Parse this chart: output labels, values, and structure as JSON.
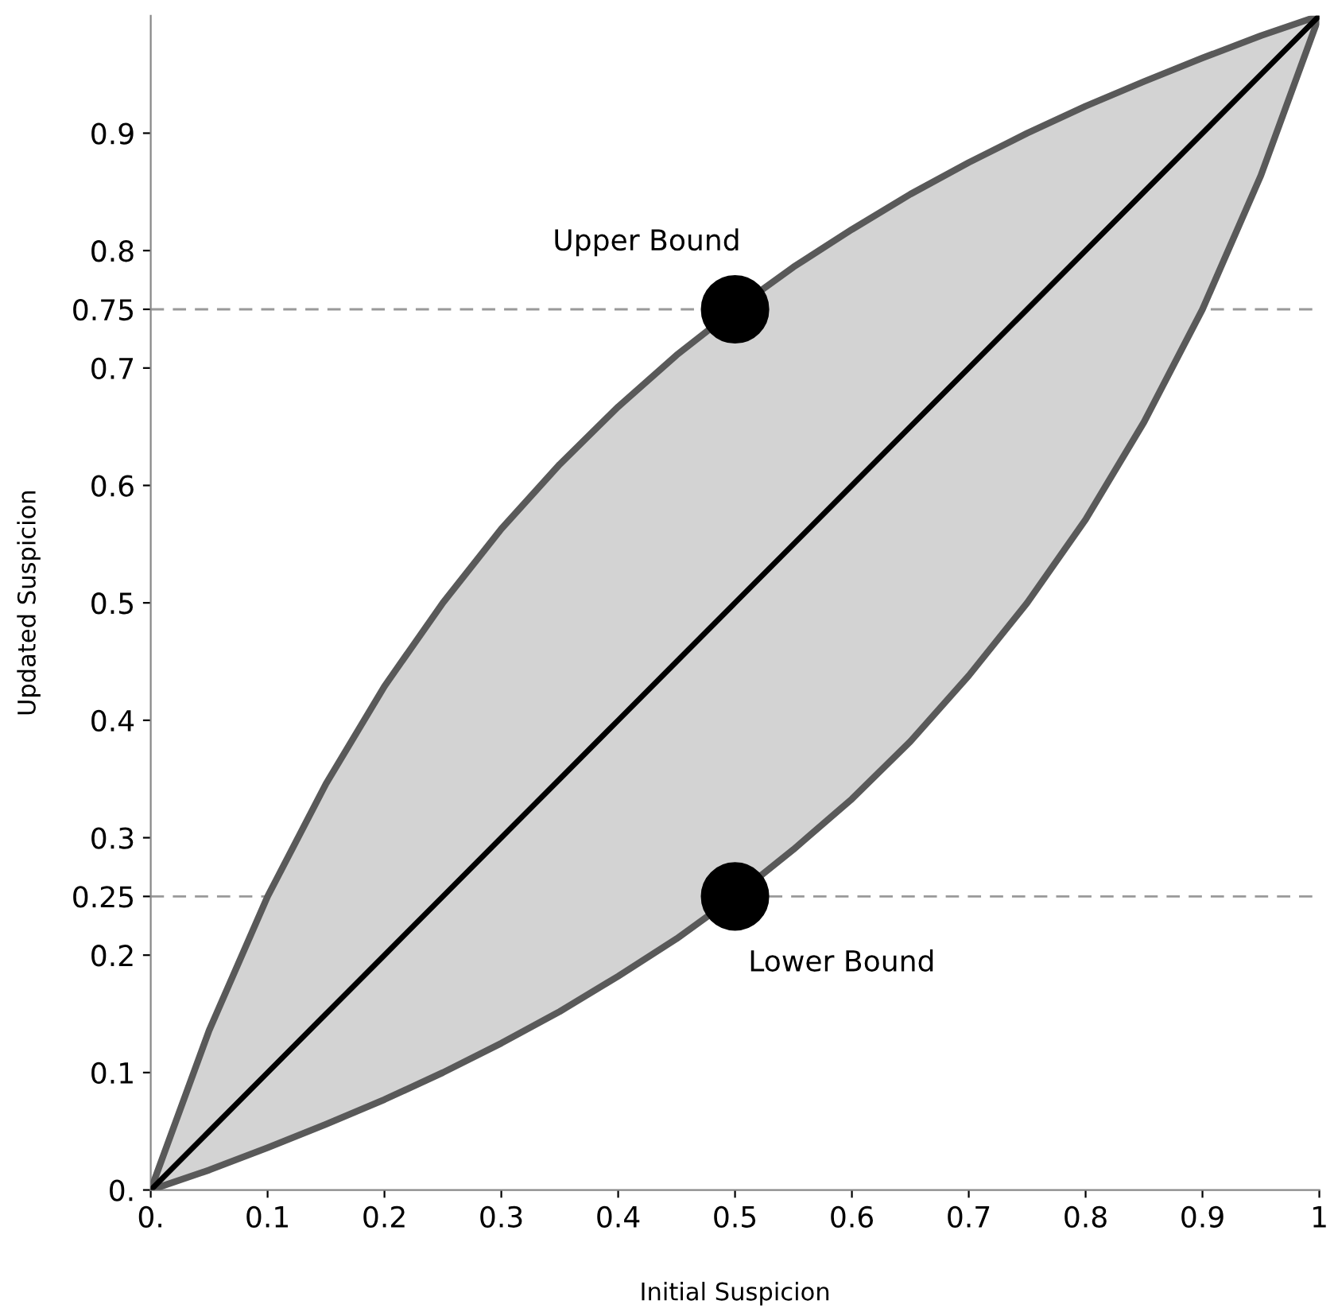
{
  "chart_data": {
    "type": "line",
    "xlabel": "Initial Suspicion",
    "ylabel": "Updated Suspicion",
    "xlim": [
      0,
      1
    ],
    "ylim": [
      0,
      1
    ],
    "xticks": [
      {
        "value": 0,
        "label": "0."
      },
      0.1,
      0.2,
      0.3,
      0.4,
      0.5,
      0.6,
      0.7,
      0.8,
      0.9,
      1
    ],
    "yticks": [
      {
        "value": 0,
        "label": "0."
      },
      0.1,
      0.2,
      0.25,
      0.3,
      0.4,
      0.5,
      0.6,
      0.7,
      0.75,
      0.8,
      0.9
    ],
    "grid": false,
    "series": [
      {
        "color": "#000000",
        "x": [
          0,
          0.05,
          0.1,
          0.15,
          0.2,
          0.25,
          0.3,
          0.35,
          0.4,
          0.45,
          0.5,
          0.55,
          0.6,
          0.65,
          0.7,
          0.75,
          0.8,
          0.85,
          0.9,
          0.95,
          1
        ],
        "values": [
          0,
          0.05,
          0.1,
          0.15,
          0.2,
          0.25,
          0.3,
          0.35,
          0.4,
          0.45,
          0.5,
          0.55,
          0.6,
          0.65,
          0.7,
          0.75,
          0.8,
          0.85,
          0.9,
          0.95,
          1
        ],
        "lower": [
          0,
          0.017,
          0.036,
          0.056,
          0.077,
          0.1,
          0.125,
          0.152,
          0.182,
          0.214,
          0.25,
          0.29,
          0.333,
          0.382,
          0.438,
          0.5,
          0.571,
          0.654,
          0.75,
          0.864,
          1
        ],
        "upper": [
          0,
          0.136,
          0.25,
          0.346,
          0.429,
          0.5,
          0.563,
          0.618,
          0.667,
          0.711,
          0.75,
          0.786,
          0.818,
          0.848,
          0.875,
          0.9,
          0.923,
          0.944,
          0.964,
          0.983,
          1
        ]
      },
      {
        "type": "scatter",
        "color": "#000000",
        "marker": "circle",
        "x": [
          0.5,
          0.5
        ],
        "values": [
          0.75,
          0.25
        ]
      }
    ],
    "ref_lines": [
      {
        "axis": "y",
        "value": 0.75,
        "color": "#999999",
        "line_style": "dashed"
      },
      {
        "axis": "y",
        "value": 0.25,
        "color": "#999999",
        "line_style": "dashed"
      }
    ],
    "annotations": [
      {
        "text": "Upper Bound",
        "x": 0.5,
        "y": 0.75
      },
      {
        "text": "Lower Bound",
        "x": 0.5,
        "y": 0.25
      }
    ]
  }
}
